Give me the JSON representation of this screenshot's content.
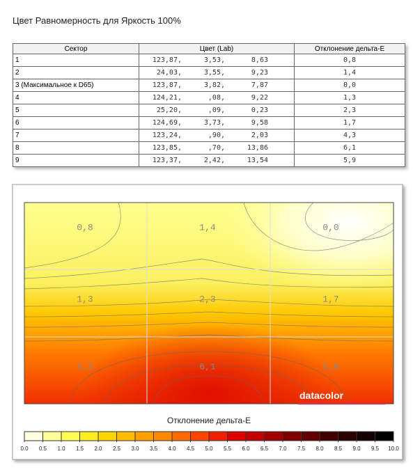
{
  "title": "Цвет Равномерность для Яркость 100%",
  "table": {
    "headers": [
      "Сектор",
      "Цвет (Lab)",
      "Отклонение дельта-E"
    ],
    "rows": [
      [
        "1",
        [
          "123,87,",
          "3,53,",
          "8,63"
        ],
        "0,8"
      ],
      [
        "2",
        [
          "24,03,",
          "3,55,",
          "9,23"
        ],
        "1,4"
      ],
      [
        "3 (Максимальное к D65)",
        [
          "123,87,",
          "3,82,",
          "7,87"
        ],
        "0,0"
      ],
      [
        "4",
        [
          "124,21,",
          ",08,",
          "9,22"
        ],
        "1,3"
      ],
      [
        "5",
        [
          "25,20,",
          ",09,",
          "0,23"
        ],
        "2,3"
      ],
      [
        "6",
        [
          "124,69,",
          "3,73,",
          "9,58"
        ],
        "1,7"
      ],
      [
        "7",
        [
          "123,24,",
          ",90,",
          "2,03"
        ],
        "4,3"
      ],
      [
        "8",
        [
          "123,85,",
          ",70,",
          "13,86"
        ],
        "6,1"
      ],
      [
        "9",
        [
          "123,37,",
          "2,42,",
          "13,54"
        ],
        "5,9"
      ]
    ]
  },
  "heatmap": {
    "labels": [
      "0,8",
      "1,4",
      "0,0",
      "1,3",
      "2,3",
      "1,7",
      "4,3",
      "6,1",
      "5,9"
    ],
    "logo": "datacolor",
    "colorbar_title": "Отклонение дельта-E",
    "colorbar_ticks": [
      "0.0",
      "0.5",
      "1.0",
      "1.5",
      "2.0",
      "2.5",
      "3.0",
      "3.5",
      "4.0",
      "4.5",
      "5.0",
      "5.5",
      "6.0",
      "6.5",
      "7.0",
      "7.5",
      "8.0",
      "8.5",
      "9.0",
      "9.5",
      "10.0"
    ]
  }
}
